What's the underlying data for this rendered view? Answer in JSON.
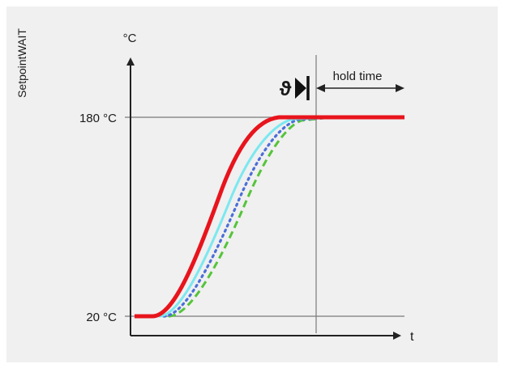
{
  "diagram": {
    "side_label": "SetpointWAIT",
    "y_unit": "°C",
    "x_label": "t",
    "y_high_label": "180 °C",
    "y_low_label": "20 °C",
    "hold_label": "hold time",
    "theta_symbol": "ϑ"
  },
  "colors": {
    "background": "#f0f0f0",
    "axis": "#222222",
    "guide": "#7a7a7a",
    "setpoint": "#e8141c",
    "cyan": "#7be8f0",
    "blue_dotted": "#4a6fd8",
    "green_dashed": "#55c43a"
  }
}
